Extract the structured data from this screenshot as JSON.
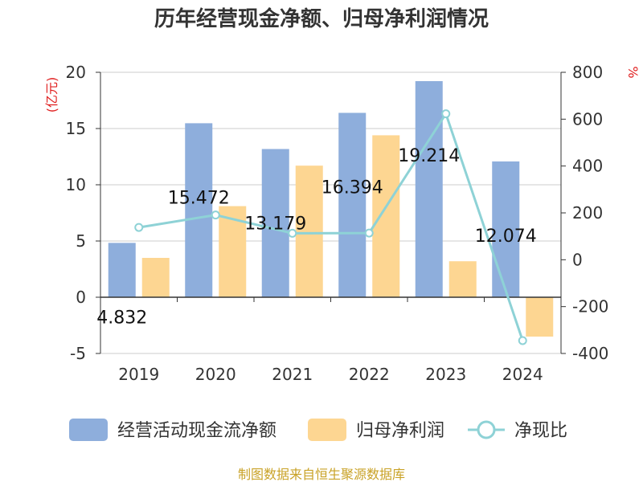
{
  "chart_data": {
    "type": "bar",
    "title": "历年经营现金净额、归母净利润情况",
    "categories": [
      "2019",
      "2020",
      "2021",
      "2022",
      "2023",
      "2024"
    ],
    "series": [
      {
        "name": "经营活动现金流净额",
        "type": "bar",
        "axis": "left",
        "values": [
          4.832,
          15.472,
          13.179,
          16.394,
          19.214,
          12.074
        ],
        "color": "#8EAEDC"
      },
      {
        "name": "归母净利润",
        "type": "bar",
        "axis": "left",
        "values": [
          3.5,
          8.1,
          11.7,
          14.4,
          3.2,
          -3.5
        ],
        "color": "#FDD692"
      },
      {
        "name": "净现比",
        "type": "line",
        "axis": "right",
        "values": [
          138,
          191,
          113,
          114,
          623,
          -345
        ],
        "color": "#8ED2D6"
      }
    ],
    "data_labels": [
      "4.832",
      "15.472",
      "13.179",
      "16.394",
      "19.214",
      "12.074"
    ],
    "y_left": {
      "unit": "(亿元)",
      "ylim": [
        -5,
        20
      ],
      "ticks": [
        "20",
        "15",
        "10",
        "5",
        "0",
        "-5"
      ],
      "tick_values": [
        20,
        15,
        10,
        5,
        0,
        -5
      ]
    },
    "y_right": {
      "unit": "%",
      "ylim": [
        -400,
        800
      ],
      "ticks": [
        "800",
        "600",
        "400",
        "200",
        "0",
        "-200",
        "-400"
      ],
      "tick_values": [
        800,
        600,
        400,
        200,
        0,
        -200,
        -400
      ]
    },
    "grid": true,
    "legend_position": "bottom",
    "source": "制图数据来自恒生聚源数据库",
    "colors": {
      "title": "#333333",
      "unit": "#E02020",
      "source": "#C9A227",
      "grid": "#CCCCCC",
      "axis": "#333333"
    }
  }
}
